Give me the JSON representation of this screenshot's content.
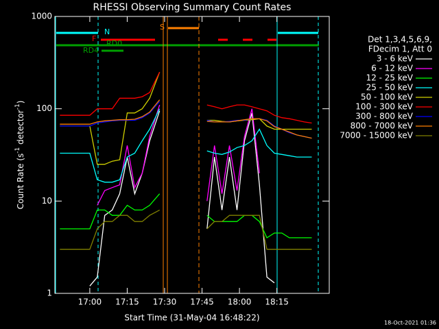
{
  "chart_data": {
    "type": "line",
    "title": "RHESSI Observing Summary Count Rates",
    "xlabel": "Start Time (31-May-04 16:48:22)",
    "ylabel": [
      "Count Rate (s",
      "-1",
      " detector",
      "-1",
      ")"
    ],
    "legend_header": [
      "Det 1,3,4,5,6,9,",
      "FDecim 1, Att 0"
    ],
    "footer": "18-Oct-2021 01:36",
    "log_y": true,
    "xlim": [
      "16:46",
      "18:36"
    ],
    "xticks": [
      "17:00",
      "17:15",
      "17:30",
      "17:45",
      "18:00",
      "18:15"
    ],
    "ylim": [
      1,
      1000
    ],
    "yticks": [
      1,
      10,
      100,
      1000
    ],
    "flags": [
      "N",
      "F",
      "S",
      "RD0",
      "RD4"
    ],
    "x": [
      "16:48",
      "16:52",
      "16:56",
      "17:00",
      "17:03",
      "17:06",
      "17:09",
      "17:12",
      "17:15",
      "17:18",
      "17:21",
      "17:24",
      "17:28",
      "17:29",
      "17:47",
      "17:50",
      "17:53",
      "17:56",
      "17:59",
      "18:02",
      "18:05",
      "18:08",
      "18:11",
      "18:14",
      "18:17",
      "18:20",
      "18:23",
      "18:26",
      "18:29"
    ],
    "series": [
      {
        "name": "3 - 6 keV",
        "color": "#ffffff",
        "values": [
          null,
          null,
          null,
          1.2,
          1.5,
          7,
          8,
          12,
          30,
          12,
          20,
          45,
          95,
          null,
          5,
          30,
          8,
          30,
          8,
          45,
          90,
          15,
          1.5,
          1.3,
          null,
          null,
          null,
          null,
          null
        ]
      },
      {
        "name": "6 - 12 keV",
        "color": "#ff00ff",
        "values": [
          null,
          null,
          null,
          null,
          9,
          13,
          14,
          15,
          40,
          14,
          20,
          50,
          110,
          null,
          10,
          40,
          12,
          40,
          13,
          50,
          100,
          20,
          null,
          null,
          null,
          null,
          null,
          null,
          null
        ]
      },
      {
        "name": "12 - 25 keV",
        "color": "#00ff00",
        "values": [
          5,
          5,
          5,
          5,
          8,
          8,
          7,
          7,
          9,
          8,
          8,
          9,
          12,
          null,
          7,
          6,
          6,
          6,
          6,
          7,
          7,
          6,
          4,
          4.5,
          4.5,
          4,
          4,
          4,
          4
        ]
      },
      {
        "name": "25 - 50 keV",
        "color": "#00ffff",
        "values": [
          33,
          33,
          33,
          33,
          17,
          16,
          16,
          17,
          30,
          33,
          45,
          60,
          100,
          null,
          35,
          33,
          32,
          34,
          38,
          40,
          45,
          60,
          40,
          33,
          32,
          31,
          30,
          30,
          30
        ]
      },
      {
        "name": "50 - 100 keV",
        "color": "#d0d000",
        "values": [
          65,
          65,
          65,
          65,
          25,
          25,
          27,
          28,
          90,
          90,
          100,
          130,
          250,
          null,
          75,
          75,
          73,
          72,
          74,
          75,
          76,
          78,
          65,
          60,
          60,
          60,
          60,
          60,
          60
        ]
      },
      {
        "name": "100 - 300 keV",
        "color": "#ff0000",
        "values": [
          85,
          85,
          85,
          85,
          100,
          100,
          100,
          130,
          130,
          130,
          135,
          150,
          250,
          null,
          110,
          105,
          100,
          105,
          110,
          110,
          105,
          100,
          95,
          85,
          80,
          78,
          75,
          72,
          70
        ]
      },
      {
        "name": "300 - 800 keV",
        "color": "#0000ff",
        "values": [
          65,
          65,
          65,
          65,
          70,
          72,
          74,
          75,
          75,
          75,
          80,
          90,
          120,
          null,
          75,
          72,
          72,
          73,
          75,
          75,
          78,
          78,
          75,
          65,
          60,
          55,
          52,
          50,
          48
        ]
      },
      {
        "name": "800 - 7000 keV",
        "color": "#ff8000",
        "values": [
          68,
          68,
          68,
          68,
          72,
          74,
          75,
          76,
          76,
          77,
          82,
          92,
          125,
          null,
          73,
          72,
          72,
          72,
          74,
          76,
          78,
          78,
          74,
          64,
          60,
          56,
          52,
          50,
          48
        ]
      },
      {
        "name": "7000 - 15000 keV",
        "color": "#808000",
        "values": [
          3,
          3,
          3,
          3,
          5,
          6,
          6,
          7,
          7,
          6,
          6,
          7,
          8,
          null,
          5,
          6,
          6,
          7,
          7,
          7,
          7,
          7,
          3,
          3,
          3,
          3,
          3,
          3,
          3
        ]
      }
    ]
  }
}
